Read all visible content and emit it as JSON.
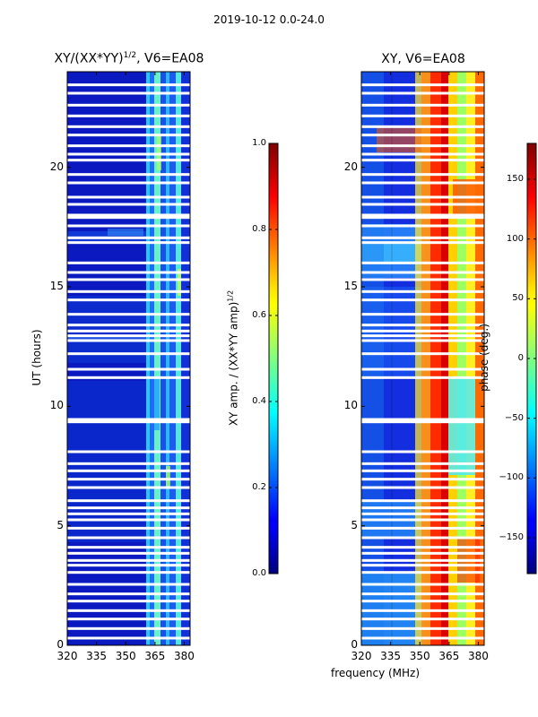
{
  "suptitle": "2019-10-12 0.0-24.0",
  "chart_data": [
    {
      "type": "heatmap",
      "title_main": "XY/(XX*YY)",
      "title_sup": "1/2",
      "title_tail": ", V6=EA08",
      "ylabel": "UT (hours)",
      "xlim": [
        320,
        383
      ],
      "ylim": [
        0,
        24
      ],
      "xticks": [
        320,
        335,
        350,
        365,
        380
      ],
      "yticks": [
        0,
        5,
        10,
        15,
        20
      ],
      "colorbar": {
        "label_main": "XY amp. / (XX*YY amp)",
        "label_sup": "1/2",
        "range": [
          0.0,
          1.0
        ],
        "ticks": [
          "0.0",
          "0.2",
          "0.4",
          "0.6",
          "0.8",
          "1.0"
        ],
        "tick_values": [
          0.0,
          0.2,
          0.4,
          0.6,
          0.8,
          1.0
        ]
      }
    },
    {
      "type": "heatmap",
      "title": "XY, V6=EA08",
      "xlabel": "frequency (MHz)",
      "xlim": [
        320,
        383
      ],
      "ylim": [
        0,
        24
      ],
      "xticks": [
        320,
        335,
        350,
        365,
        380
      ],
      "yticks": [
        0,
        5,
        10,
        15,
        20
      ],
      "colorbar": {
        "label": "phase (deg.)",
        "range": [
          -180,
          180
        ],
        "ticks": [
          "150",
          "100",
          "50",
          "0",
          "−50",
          "−100",
          "−150"
        ],
        "tick_values": [
          150,
          100,
          50,
          0,
          -50,
          -100,
          -150
        ]
      }
    }
  ],
  "flagged_hours": [
    23.45,
    23.1,
    22.6,
    22.15,
    21.7,
    21.35,
    20.9,
    20.55,
    20.3,
    19.7,
    19.35,
    18.75,
    18.45,
    18.0,
    17.9,
    17.55,
    17.05,
    16.85,
    16.0,
    15.6,
    15.3,
    14.8,
    14.45,
    13.85,
    13.4,
    13.15,
    12.95,
    12.75,
    12.2,
    11.55,
    11.2,
    9.45,
    9.35,
    8.1,
    7.6,
    7.3,
    6.95,
    6.6,
    6.05,
    5.75,
    5.5,
    5.25,
    4.9,
    4.5,
    4.1,
    3.85,
    3.55,
    3.35,
    3.05,
    2.55,
    2.15,
    1.85,
    1.45,
    1.1,
    0.7,
    0.3
  ]
}
